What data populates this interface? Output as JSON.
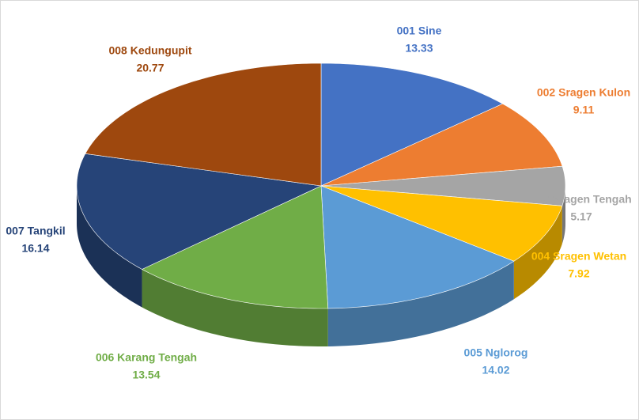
{
  "chart_data": {
    "type": "pie",
    "categories": [
      "001 Sine",
      "002 Sragen Kulon",
      "003 Sragen Tengah",
      "004 Sragen Wetan",
      "005 Nglorog",
      "006 Karang Tengah",
      "007 Tangkil",
      "008 Kedungupit"
    ],
    "values": [
      13.33,
      9.11,
      5.17,
      7.92,
      14.02,
      13.54,
      16.14,
      20.77
    ],
    "colors": [
      "#4472c4",
      "#ed7d31",
      "#a5a5a5",
      "#ffc000",
      "#5b9bd5",
      "#70ad47",
      "#264478",
      "#9e480e"
    ]
  }
}
